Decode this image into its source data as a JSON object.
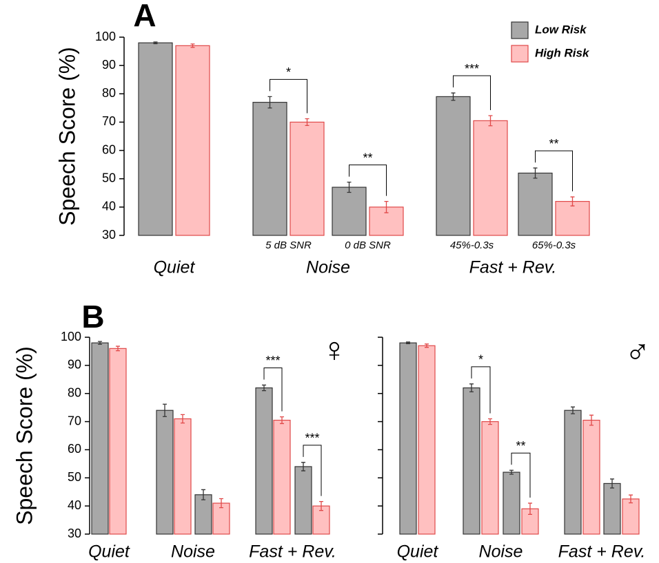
{
  "chart_data": [
    {
      "type": "bar",
      "panel": "A",
      "ylabel": "Speech Score (%)",
      "ylim": [
        30,
        100
      ],
      "yticks": [
        30,
        40,
        50,
        60,
        70,
        80,
        90,
        100
      ],
      "categories": [
        null,
        "5 dB SNR",
        "0 dB SNR",
        "45%-0.3s",
        "65%-0.3s"
      ],
      "groups": [
        "Quiet",
        "Noise",
        "Fast + Rev."
      ],
      "category_group": [
        0,
        1,
        1,
        2,
        2
      ],
      "series": [
        {
          "name": "Low Risk",
          "color": "#a8a8a8",
          "edgecolor": "#333333",
          "values": [
            98,
            77,
            47,
            79,
            52
          ],
          "errors": [
            0.3,
            2,
            1.8,
            1.3,
            1.8
          ]
        },
        {
          "name": "High Risk",
          "color": "#ffc0c0",
          "edgecolor": "#e04848",
          "values": [
            97,
            70,
            40,
            70.5,
            42
          ],
          "errors": [
            0.6,
            1.2,
            2,
            1.8,
            1.6
          ]
        }
      ],
      "annotations": [
        {
          "text": "*",
          "category": 1
        },
        {
          "text": "**",
          "category": 2
        },
        {
          "text": "***",
          "category": 3
        },
        {
          "text": "**",
          "category": 4
        }
      ],
      "legend": "upper right"
    },
    {
      "type": "bar",
      "panel": "B",
      "ylabel": "Speech Score (%)",
      "symbol": "♀",
      "ylim": [
        30,
        100
      ],
      "yticks": [
        30,
        40,
        50,
        60,
        70,
        80,
        90,
        100
      ],
      "categories": [
        null,
        null,
        null,
        null,
        null
      ],
      "groups": [
        "Quiet",
        "Noise",
        "Fast + Rev."
      ],
      "category_group": [
        0,
        1,
        1,
        2,
        2
      ],
      "series": [
        {
          "color": "#a8a8a8",
          "edgecolor": "#333333",
          "values": [
            98,
            74,
            44,
            82,
            54
          ],
          "errors": [
            0.5,
            2.2,
            1.8,
            1,
            1.5
          ]
        },
        {
          "color": "#ffc0c0",
          "edgecolor": "#e04848",
          "values": [
            96,
            71,
            41,
            70.5,
            40
          ],
          "errors": [
            0.8,
            1.5,
            1.6,
            1.2,
            1.6
          ]
        }
      ],
      "annotations": [
        {
          "text": "***",
          "category": 3
        },
        {
          "text": "***",
          "category": 4
        }
      ]
    },
    {
      "type": "bar",
      "symbol": "♂",
      "ylim": [
        30,
        100
      ],
      "yticks": [
        30,
        40,
        50,
        60,
        70,
        80,
        90,
        100
      ],
      "ytick_labels": false,
      "categories": [
        null,
        null,
        null,
        null,
        null
      ],
      "groups": [
        "Quiet",
        "Noise",
        "Fast + Rev."
      ],
      "category_group": [
        0,
        1,
        1,
        2,
        2
      ],
      "series": [
        {
          "color": "#a8a8a8",
          "edgecolor": "#333333",
          "values": [
            98,
            82,
            52,
            74,
            48
          ],
          "errors": [
            0.3,
            1.4,
            0.7,
            1.2,
            1.6
          ]
        },
        {
          "color": "#ffc0c0",
          "edgecolor": "#e04848",
          "values": [
            97,
            70,
            39,
            70.5,
            42.5
          ],
          "errors": [
            0.6,
            1,
            2,
            1.8,
            1.4
          ]
        }
      ],
      "annotations": [
        {
          "text": "*",
          "category": 1
        },
        {
          "text": "**",
          "category": 2
        }
      ]
    }
  ]
}
